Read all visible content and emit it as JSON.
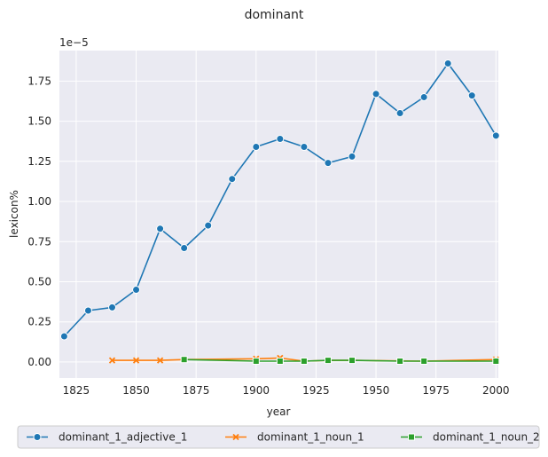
{
  "chart_data": {
    "type": "line",
    "title": "dominant",
    "xlabel": "year",
    "ylabel": "lexicon%",
    "y_scale_label": "1e−5",
    "xlim": [
      1818,
      2001
    ],
    "ylim": [
      -0.1,
      1.94
    ],
    "xticks": [
      1825,
      1850,
      1875,
      1900,
      1925,
      1950,
      1975,
      2000
    ],
    "yticks": [
      0.0,
      0.25,
      0.5,
      0.75,
      1.0,
      1.25,
      1.5,
      1.75
    ],
    "ytick_labels": [
      "0.00",
      "0.25",
      "0.50",
      "0.75",
      "1.00",
      "1.25",
      "1.50",
      "1.75"
    ],
    "grid": true,
    "legend_position": "bottom",
    "background": "#eaeaf2",
    "series": [
      {
        "name": "dominant_1_adjective_1",
        "color": "#1f77b4",
        "marker": "circle",
        "x": [
          1820,
          1830,
          1840,
          1850,
          1860,
          1870,
          1880,
          1890,
          1900,
          1910,
          1920,
          1930,
          1940,
          1950,
          1960,
          1970,
          1980,
          1990,
          2000
        ],
        "y": [
          0.16,
          0.32,
          0.34,
          0.45,
          0.83,
          0.71,
          0.85,
          1.14,
          1.34,
          1.39,
          1.34,
          1.24,
          1.28,
          1.67,
          1.55,
          1.65,
          1.86,
          1.66,
          1.41
        ]
      },
      {
        "name": "dominant_1_noun_1",
        "color": "#ff7f0e",
        "marker": "x",
        "x": [
          1840,
          1850,
          1860,
          1870,
          1900,
          1910,
          1920,
          1930,
          1940,
          1970,
          2000
        ],
        "y": [
          0.01,
          0.01,
          0.01,
          0.015,
          0.02,
          0.025,
          0.005,
          0.01,
          0.01,
          0.005,
          0.015
        ]
      },
      {
        "name": "dominant_1_noun_2",
        "color": "#2ca02c",
        "marker": "square",
        "x": [
          1870,
          1900,
          1910,
          1920,
          1930,
          1940,
          1960,
          1970,
          2000
        ],
        "y": [
          0.015,
          0.005,
          0.005,
          0.005,
          0.01,
          0.01,
          0.005,
          0.005,
          0.005
        ]
      }
    ]
  }
}
